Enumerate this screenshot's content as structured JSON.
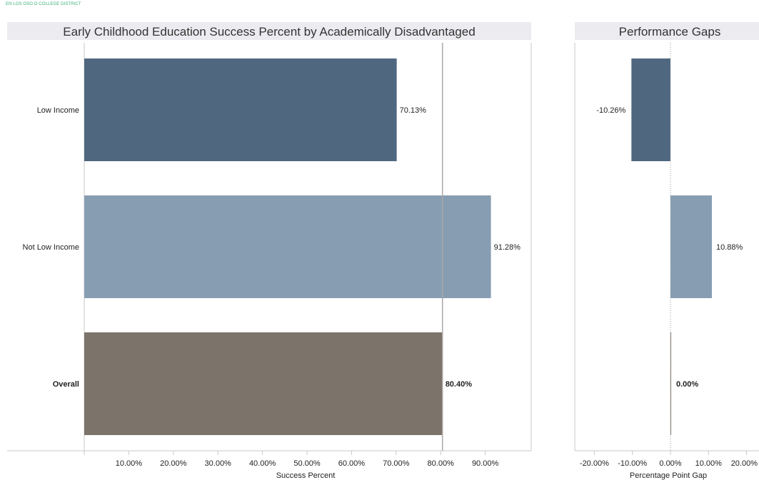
{
  "header": {
    "text": "EN LOS OSO O COLLEGE DISTRICT"
  },
  "chart_data": [
    {
      "type": "bar",
      "orientation": "horizontal",
      "title": "Early Childhood Education Success Percent by Academically Disadvantaged",
      "xlabel": "Success Percent",
      "ylabel": "",
      "categories": [
        "Low Income",
        "Not Low Income",
        "Overall"
      ],
      "values": [
        70.13,
        91.28,
        80.4
      ],
      "data_labels": [
        "70.13%",
        "91.28%",
        "80.40%"
      ],
      "colors": [
        "#4f6880",
        "#879db2",
        "#7c736a"
      ],
      "xlim": [
        0,
        100
      ],
      "tick_values": [
        10,
        20,
        30,
        40,
        50,
        60,
        70,
        80,
        90
      ],
      "tick_labels": [
        "10.00%",
        "20.00%",
        "30.00%",
        "40.00%",
        "50.00%",
        "60.00%",
        "70.00%",
        "80.00%",
        "90.00%"
      ],
      "reference_line": 80.4,
      "grid": false,
      "legend": "none"
    },
    {
      "type": "bar",
      "orientation": "horizontal",
      "title": "Performance Gaps",
      "xlabel": "Percentage Point Gap",
      "ylabel": "",
      "categories": [
        "Low Income",
        "Not Low Income",
        "Overall"
      ],
      "values": [
        -10.26,
        10.88,
        0.0
      ],
      "data_labels": [
        "-10.26%",
        "10.88%",
        "0.00%"
      ],
      "colors": [
        "#4f6880",
        "#879db2",
        "#7c736a"
      ],
      "xlim": [
        -25,
        25
      ],
      "tick_values": [
        -20,
        -10,
        0,
        10,
        20
      ],
      "tick_labels": [
        "-20.00%",
        "-10.00%",
        "0.00%",
        "10.00%",
        "20.00%"
      ],
      "zero_line": 0,
      "grid": false,
      "legend": "none"
    }
  ]
}
